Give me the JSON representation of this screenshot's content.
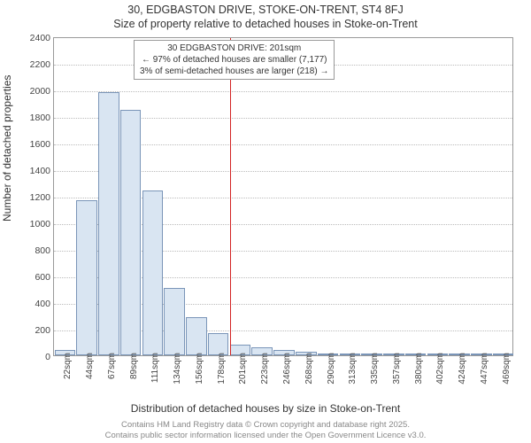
{
  "chart": {
    "type": "histogram",
    "title_line1": "30, EDGBASTON DRIVE, STOKE-ON-TRENT, ST4 8FJ",
    "title_line2": "Size of property relative to detached houses in Stoke-on-Trent",
    "ylabel": "Number of detached properties",
    "xlabel": "Distribution of detached houses by size in Stoke-on-Trent",
    "title_fontsize": 12.5,
    "label_fontsize": 12,
    "tick_fontsize": 10.5,
    "background_color": "#ffffff",
    "plot_border_color": "#999999",
    "grid_color": "#bbbbbb",
    "bar_fill": "#d9e5f2",
    "bar_border": "#7a95b8",
    "marker_color": "#d22222",
    "ylim": [
      0,
      2400
    ],
    "ytick_step": 200,
    "yticks": [
      0,
      200,
      400,
      600,
      800,
      1000,
      1200,
      1400,
      1600,
      1800,
      2000,
      2200,
      2400
    ],
    "xticks": [
      "22sqm",
      "44sqm",
      "67sqm",
      "89sqm",
      "111sqm",
      "134sqm",
      "156sqm",
      "178sqm",
      "201sqm",
      "223sqm",
      "246sqm",
      "268sqm",
      "290sqm",
      "313sqm",
      "335sqm",
      "357sqm",
      "380sqm",
      "402sqm",
      "424sqm",
      "447sqm",
      "469sqm"
    ],
    "bin_width_sqm": 22,
    "bars": [
      {
        "x": 22,
        "count": 40
      },
      {
        "x": 44,
        "count": 1170
      },
      {
        "x": 67,
        "count": 1980
      },
      {
        "x": 89,
        "count": 1850
      },
      {
        "x": 111,
        "count": 1240
      },
      {
        "x": 134,
        "count": 510
      },
      {
        "x": 156,
        "count": 290
      },
      {
        "x": 178,
        "count": 170
      },
      {
        "x": 201,
        "count": 80
      },
      {
        "x": 223,
        "count": 60
      },
      {
        "x": 246,
        "count": 40
      },
      {
        "x": 268,
        "count": 25
      },
      {
        "x": 290,
        "count": 15
      },
      {
        "x": 313,
        "count": 7
      },
      {
        "x": 335,
        "count": 3
      },
      {
        "x": 357,
        "count": 2
      },
      {
        "x": 380,
        "count": 2
      },
      {
        "x": 402,
        "count": 1
      },
      {
        "x": 424,
        "count": 1
      },
      {
        "x": 447,
        "count": 0
      },
      {
        "x": 469,
        "count": 1
      }
    ],
    "marker": {
      "x": 201,
      "callout_line1": "30 EDGBASTON DRIVE: 201sqm",
      "callout_line2": "← 97% of detached houses are smaller (7,177)",
      "callout_line3": "3% of semi-detached houses are larger (218) →"
    },
    "attribution_line1": "Contains HM Land Registry data © Crown copyright and database right 2025.",
    "attribution_line2": "Contains public sector information licensed under the Open Government Licence v3.0."
  }
}
